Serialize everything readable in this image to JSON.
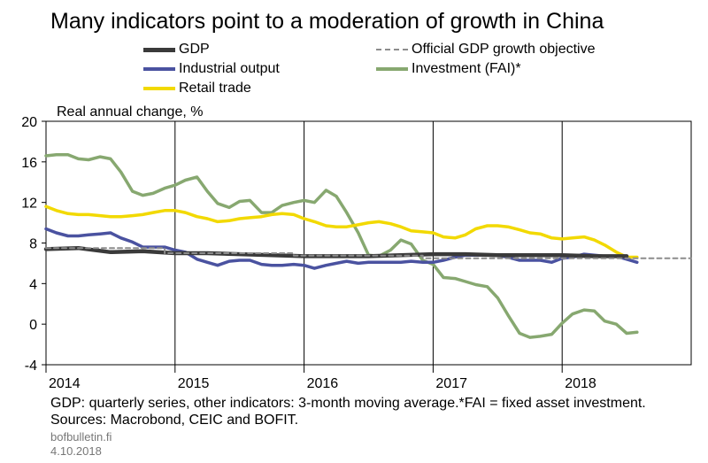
{
  "title": "Many indicators point to a moderation of growth in China",
  "footnotes": {
    "note": "GDP: quarterly series, other indicators: 3-month moving average.*FAI = fixed asset investment.",
    "sources": "Sources: Macrobond, CEIC and BOFIT.",
    "site": "bofbulletin.fi",
    "date": "4.10.2018"
  },
  "chart_data": {
    "type": "line",
    "ylabel": "Real annual change, %",
    "ylim": [
      -4,
      20
    ],
    "yticks": [
      -4,
      0,
      4,
      8,
      12,
      16,
      20
    ],
    "xlim": [
      2014,
      2019
    ],
    "xticks": [
      "2014",
      "2015",
      "2016",
      "2017",
      "2018"
    ],
    "grid": "vertical lines at year starts",
    "legend_placement": "top",
    "series": [
      {
        "name": "GDP",
        "color": "#3a3a3a",
        "style": "solid",
        "x": [
          2014.0,
          2014.25,
          2014.5,
          2014.75,
          2015.0,
          2015.25,
          2015.5,
          2015.75,
          2016.0,
          2016.25,
          2016.5,
          2016.75,
          2017.0,
          2017.25,
          2017.5,
          2017.75,
          2018.0,
          2018.25,
          2018.5
        ],
        "y": [
          7.4,
          7.5,
          7.1,
          7.2,
          7.0,
          7.0,
          6.9,
          6.8,
          6.7,
          6.7,
          6.7,
          6.8,
          6.9,
          6.9,
          6.8,
          6.8,
          6.8,
          6.7,
          6.7
        ]
      },
      {
        "name": "Official GDP growth objective",
        "color": "#8c8c8c",
        "style": "dashed",
        "x": [
          2014.0,
          2014.92,
          2014.92,
          2015.92,
          2015.92,
          2016.92,
          2016.92,
          2019.0
        ],
        "y": [
          7.5,
          7.5,
          7.0,
          7.0,
          6.75,
          6.75,
          6.5,
          6.5
        ]
      },
      {
        "name": "Industrial output",
        "color": "#4a52a0",
        "style": "solid",
        "x": [
          2014.0,
          2014.08,
          2014.17,
          2014.25,
          2014.33,
          2014.42,
          2014.5,
          2014.58,
          2014.67,
          2014.75,
          2014.83,
          2014.92,
          2015.0,
          2015.08,
          2015.17,
          2015.25,
          2015.33,
          2015.42,
          2015.5,
          2015.58,
          2015.67,
          2015.75,
          2015.83,
          2015.92,
          2016.0,
          2016.08,
          2016.17,
          2016.25,
          2016.33,
          2016.42,
          2016.5,
          2016.58,
          2016.67,
          2016.75,
          2016.83,
          2016.92,
          2017.0,
          2017.08,
          2017.17,
          2017.25,
          2017.33,
          2017.42,
          2017.5,
          2017.58,
          2017.67,
          2017.75,
          2017.83,
          2017.92,
          2018.0,
          2018.08,
          2018.17,
          2018.25,
          2018.33,
          2018.42,
          2018.5,
          2018.58
        ],
        "y": [
          9.4,
          9.0,
          8.7,
          8.7,
          8.8,
          8.9,
          9.0,
          8.5,
          8.1,
          7.6,
          7.6,
          7.6,
          7.3,
          7.1,
          6.4,
          6.1,
          5.8,
          6.2,
          6.3,
          6.3,
          5.9,
          5.8,
          5.8,
          5.9,
          5.8,
          5.5,
          5.8,
          6.0,
          6.2,
          6.0,
          6.1,
          6.1,
          6.1,
          6.1,
          6.2,
          6.1,
          6.1,
          6.3,
          6.6,
          6.8,
          6.8,
          6.8,
          6.8,
          6.6,
          6.3,
          6.3,
          6.3,
          6.1,
          6.5,
          6.6,
          6.9,
          6.8,
          6.7,
          6.7,
          6.4,
          6.1
        ]
      },
      {
        "name": "Investment (FAI)*",
        "color": "#87a870",
        "style": "solid",
        "x": [
          2014.0,
          2014.08,
          2014.17,
          2014.25,
          2014.33,
          2014.42,
          2014.5,
          2014.58,
          2014.67,
          2014.75,
          2014.83,
          2014.92,
          2015.0,
          2015.08,
          2015.17,
          2015.25,
          2015.33,
          2015.42,
          2015.5,
          2015.58,
          2015.67,
          2015.75,
          2015.83,
          2015.92,
          2016.0,
          2016.08,
          2016.17,
          2016.25,
          2016.33,
          2016.42,
          2016.5,
          2016.58,
          2016.67,
          2016.75,
          2016.83,
          2016.92,
          2017.0,
          2017.08,
          2017.17,
          2017.25,
          2017.33,
          2017.42,
          2017.5,
          2017.58,
          2017.67,
          2017.75,
          2017.83,
          2017.92,
          2018.0,
          2018.08,
          2018.17,
          2018.25,
          2018.33,
          2018.42,
          2018.5,
          2018.58
        ],
        "y": [
          16.6,
          16.7,
          16.7,
          16.3,
          16.2,
          16.5,
          16.3,
          15.0,
          13.1,
          12.7,
          12.9,
          13.4,
          13.7,
          14.2,
          14.5,
          13.1,
          11.9,
          11.5,
          12.1,
          12.2,
          11.0,
          11.0,
          11.7,
          12.0,
          12.2,
          12.0,
          13.2,
          12.6,
          11.0,
          9.0,
          6.8,
          6.7,
          7.3,
          8.3,
          7.9,
          6.3,
          5.9,
          4.6,
          4.5,
          4.2,
          3.9,
          3.7,
          2.6,
          0.9,
          -0.9,
          -1.3,
          -1.2,
          -1.0,
          0.1,
          1.0,
          1.4,
          1.3,
          0.3,
          0.0,
          -0.9,
          -0.8
        ]
      },
      {
        "name": "Retail trade",
        "color": "#f2d900",
        "style": "solid",
        "x": [
          2014.0,
          2014.08,
          2014.17,
          2014.25,
          2014.33,
          2014.42,
          2014.5,
          2014.58,
          2014.67,
          2014.75,
          2014.83,
          2014.92,
          2015.0,
          2015.08,
          2015.17,
          2015.25,
          2015.33,
          2015.42,
          2015.5,
          2015.58,
          2015.67,
          2015.75,
          2015.83,
          2015.92,
          2016.0,
          2016.08,
          2016.17,
          2016.25,
          2016.33,
          2016.42,
          2016.5,
          2016.58,
          2016.67,
          2016.75,
          2016.83,
          2016.92,
          2017.0,
          2017.08,
          2017.17,
          2017.25,
          2017.33,
          2017.42,
          2017.5,
          2017.58,
          2017.67,
          2017.75,
          2017.83,
          2017.92,
          2018.0,
          2018.08,
          2018.17,
          2018.25,
          2018.33,
          2018.42,
          2018.5,
          2018.58
        ],
        "y": [
          11.6,
          11.2,
          10.9,
          10.8,
          10.8,
          10.7,
          10.6,
          10.6,
          10.7,
          10.8,
          11.0,
          11.2,
          11.2,
          11.0,
          10.6,
          10.4,
          10.1,
          10.2,
          10.4,
          10.5,
          10.6,
          10.8,
          10.9,
          10.8,
          10.4,
          10.1,
          9.7,
          9.6,
          9.6,
          9.8,
          10.0,
          10.1,
          9.9,
          9.6,
          9.2,
          9.1,
          9.0,
          8.6,
          8.5,
          8.8,
          9.4,
          9.7,
          9.7,
          9.6,
          9.3,
          9.0,
          8.9,
          8.5,
          8.4,
          8.5,
          8.6,
          8.3,
          7.8,
          7.1,
          6.6,
          6.6
        ]
      }
    ]
  }
}
